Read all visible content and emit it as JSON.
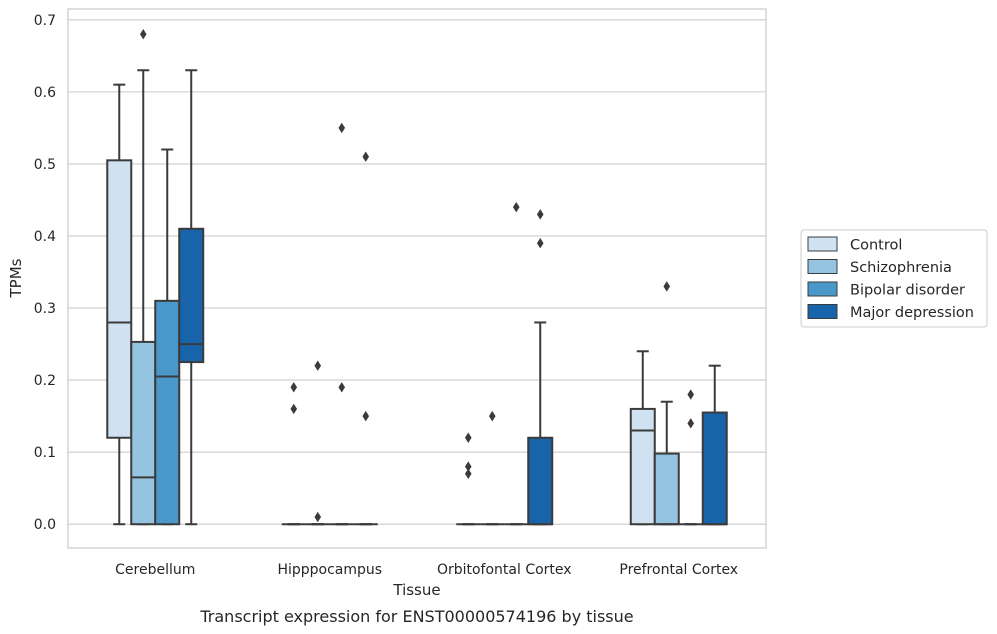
{
  "chart_data": {
    "type": "box",
    "title": "",
    "caption": "Transcript expression for ENST00000574196 by tissue",
    "xlabel": "Tissue",
    "ylabel": "TPMs",
    "ylim": [
      -0.033,
      0.715
    ],
    "yticks": [
      0.0,
      0.1,
      0.2,
      0.3,
      0.4,
      0.5,
      0.6,
      0.7
    ],
    "ytick_labels": [
      "0.0",
      "0.1",
      "0.2",
      "0.3",
      "0.4",
      "0.5",
      "0.6",
      "0.7"
    ],
    "grid": true,
    "legend_position": "right",
    "categories": [
      "Cerebellum",
      "Hipppocampus",
      "Orbitofontal Cortex",
      "Prefrontal Cortex"
    ],
    "series": [
      {
        "name": "Control",
        "color": "#d0e1f2",
        "boxes": [
          {
            "whislo": 0.0,
            "q1": 0.12,
            "med": 0.28,
            "q3": 0.505,
            "whishi": 0.61,
            "fliers": []
          },
          {
            "whislo": 0.0,
            "q1": 0.0,
            "med": 0.0,
            "q3": 0.0,
            "whishi": 0.0,
            "fliers": [
              0.19,
              0.16
            ]
          },
          {
            "whislo": 0.0,
            "q1": 0.0,
            "med": 0.0,
            "q3": 0.0,
            "whishi": 0.0,
            "fliers": [
              0.12,
              0.08,
              0.07
            ]
          },
          {
            "whislo": 0.0,
            "q1": 0.0,
            "med": 0.13,
            "q3": 0.16,
            "whishi": 0.24,
            "fliers": []
          }
        ]
      },
      {
        "name": "Schizophrenia",
        "color": "#94c4df",
        "boxes": [
          {
            "whislo": 0.0,
            "q1": 0.0,
            "med": 0.065,
            "q3": 0.253,
            "whishi": 0.63,
            "fliers": [
              0.68
            ]
          },
          {
            "whislo": 0.0,
            "q1": 0.0,
            "med": 0.0,
            "q3": 0.0,
            "whishi": 0.0,
            "fliers": [
              0.22,
              0.01
            ]
          },
          {
            "whislo": 0.0,
            "q1": 0.0,
            "med": 0.0,
            "q3": 0.0,
            "whishi": 0.0,
            "fliers": [
              0.15
            ]
          },
          {
            "whislo": 0.0,
            "q1": 0.0,
            "med": 0.0,
            "q3": 0.098,
            "whishi": 0.17,
            "fliers": [
              0.33
            ]
          }
        ]
      },
      {
        "name": "Bipolar disorder",
        "color": "#4a98c9",
        "boxes": [
          {
            "whislo": 0.0,
            "q1": 0.0,
            "med": 0.205,
            "q3": 0.31,
            "whishi": 0.52,
            "fliers": []
          },
          {
            "whislo": 0.0,
            "q1": 0.0,
            "med": 0.0,
            "q3": 0.0,
            "whishi": 0.0,
            "fliers": [
              0.55,
              0.19
            ]
          },
          {
            "whislo": 0.0,
            "q1": 0.0,
            "med": 0.0,
            "q3": 0.0,
            "whishi": 0.0,
            "fliers": [
              0.44
            ]
          },
          {
            "whislo": 0.0,
            "q1": 0.0,
            "med": 0.0,
            "q3": 0.0,
            "whishi": 0.0,
            "fliers": [
              0.18,
              0.14
            ]
          }
        ]
      },
      {
        "name": "Major depression",
        "color": "#1764ab",
        "boxes": [
          {
            "whislo": 0.0,
            "q1": 0.225,
            "med": 0.25,
            "q3": 0.41,
            "whishi": 0.63,
            "fliers": []
          },
          {
            "whislo": 0.0,
            "q1": 0.0,
            "med": 0.0,
            "q3": 0.0,
            "whishi": 0.0,
            "fliers": [
              0.51,
              0.15
            ]
          },
          {
            "whislo": 0.0,
            "q1": 0.0,
            "med": 0.0,
            "q3": 0.12,
            "whishi": 0.28,
            "fliers": [
              0.43,
              0.39
            ]
          },
          {
            "whislo": 0.0,
            "q1": 0.0,
            "med": 0.0,
            "q3": 0.155,
            "whishi": 0.22,
            "fliers": []
          }
        ]
      }
    ]
  }
}
